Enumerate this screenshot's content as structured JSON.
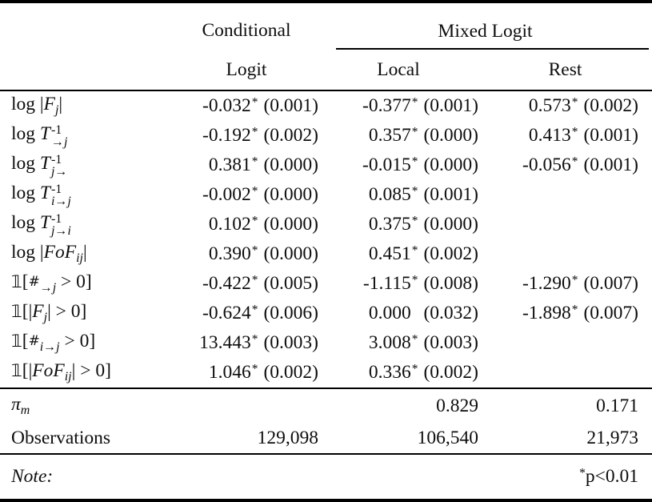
{
  "header": {
    "conditional": "Conditional",
    "mixed_logit": "Mixed Logit",
    "logit": "Logit",
    "local": "Local",
    "rest": "Rest"
  },
  "coef_rows": [
    {
      "label": [
        [
          "u",
          "log "
        ],
        [
          "u",
          "|"
        ],
        [
          "i",
          "F"
        ],
        [
          "sb",
          "j"
        ],
        [
          "u",
          "|"
        ]
      ],
      "cells": [
        {
          "v": "-0.032",
          "star": "*",
          "se": "(0.001)"
        },
        {
          "v": "-0.377",
          "star": "*",
          "se": "(0.001)"
        },
        {
          "v": "0.573",
          "star": "*",
          "se": "(0.002)"
        }
      ]
    },
    {
      "label": [
        [
          "u",
          "log "
        ],
        [
          "i",
          "T"
        ],
        [
          "ss",
          "-1",
          "→j"
        ]
      ],
      "cells": [
        {
          "v": "-0.192",
          "star": "*",
          "se": "(0.002)"
        },
        {
          "v": "0.357",
          "star": "*",
          "se": "(0.000)"
        },
        {
          "v": "0.413",
          "star": "*",
          "se": "(0.001)"
        }
      ]
    },
    {
      "label": [
        [
          "u",
          "log "
        ],
        [
          "i",
          "T"
        ],
        [
          "ss",
          "-1",
          "j→"
        ]
      ],
      "cells": [
        {
          "v": "0.381",
          "star": "*",
          "se": "(0.000)"
        },
        {
          "v": "-0.015",
          "star": "*",
          "se": "(0.000)"
        },
        {
          "v": "-0.056",
          "star": "*",
          "se": "(0.001)"
        }
      ]
    },
    {
      "label": [
        [
          "u",
          "log "
        ],
        [
          "i",
          "T"
        ],
        [
          "ss",
          "-1",
          "i→j"
        ]
      ],
      "cells": [
        {
          "v": "-0.002",
          "star": "*",
          "se": "(0.000)"
        },
        {
          "v": "0.085",
          "star": "*",
          "se": "(0.001)"
        },
        null
      ]
    },
    {
      "label": [
        [
          "u",
          "log "
        ],
        [
          "i",
          "T"
        ],
        [
          "ss",
          "-1",
          "j→i"
        ]
      ],
      "cells": [
        {
          "v": "0.102",
          "star": "*",
          "se": "(0.000)"
        },
        {
          "v": "0.375",
          "star": "*",
          "se": "(0.000)"
        },
        null
      ]
    },
    {
      "label": [
        [
          "u",
          "log "
        ],
        [
          "u",
          "|"
        ],
        [
          "i",
          "FoF"
        ],
        [
          "sb",
          "ij"
        ],
        [
          "u",
          "|"
        ]
      ],
      "cells": [
        {
          "v": "0.390",
          "star": "*",
          "se": "(0.000)"
        },
        {
          "v": "0.451",
          "star": "*",
          "se": "(0.002)"
        },
        null
      ]
    },
    {
      "label": [
        [
          "bb",
          "𝟙"
        ],
        [
          "u",
          "["
        ],
        [
          "hash",
          "#"
        ],
        [
          "sb",
          "→j"
        ],
        [
          "u",
          " > 0]"
        ]
      ],
      "cells": [
        {
          "v": "-0.422",
          "star": "*",
          "se": "(0.005)"
        },
        {
          "v": "-1.115",
          "star": "*",
          "se": "(0.008)"
        },
        {
          "v": "-1.290",
          "star": "*",
          "se": "(0.007)"
        }
      ]
    },
    {
      "label": [
        [
          "bb",
          "𝟙"
        ],
        [
          "u",
          "[|"
        ],
        [
          "i",
          "F"
        ],
        [
          "sb",
          "j"
        ],
        [
          "u",
          "| > 0]"
        ]
      ],
      "cells": [
        {
          "v": "-0.624",
          "star": "*",
          "se": "(0.006)"
        },
        {
          "v": "0.000",
          "star": "",
          "se": "(0.032)"
        },
        {
          "v": "-1.898",
          "star": "*",
          "se": "(0.007)"
        }
      ]
    },
    {
      "label": [
        [
          "bb",
          "𝟙"
        ],
        [
          "u",
          "["
        ],
        [
          "hash",
          "#"
        ],
        [
          "sb",
          "i→j"
        ],
        [
          "u",
          " > 0]"
        ]
      ],
      "cells": [
        {
          "v": "13.443",
          "star": "*",
          "se": "(0.003)"
        },
        {
          "v": "3.008",
          "star": "*",
          "se": "(0.003)"
        },
        null
      ]
    },
    {
      "label": [
        [
          "bb",
          "𝟙"
        ],
        [
          "u",
          "[|"
        ],
        [
          "i",
          "FoF"
        ],
        [
          "sb",
          "ij"
        ],
        [
          "u",
          "| > 0]"
        ]
      ],
      "cells": [
        {
          "v": "1.046",
          "star": "*",
          "se": "(0.002)"
        },
        {
          "v": "0.336",
          "star": "*",
          "se": "(0.002)"
        },
        null
      ]
    }
  ],
  "stat_rows": [
    {
      "label": [
        [
          "i",
          "π"
        ],
        [
          "sb",
          "m"
        ]
      ],
      "values": [
        "",
        "0.829",
        "0.171"
      ]
    },
    {
      "label": [
        [
          "u",
          "Observations"
        ]
      ],
      "values": [
        "129,098",
        "106,540",
        "21,973"
      ]
    }
  ],
  "note": {
    "label": "Note:",
    "star": "*",
    "text": "p<0.01"
  }
}
